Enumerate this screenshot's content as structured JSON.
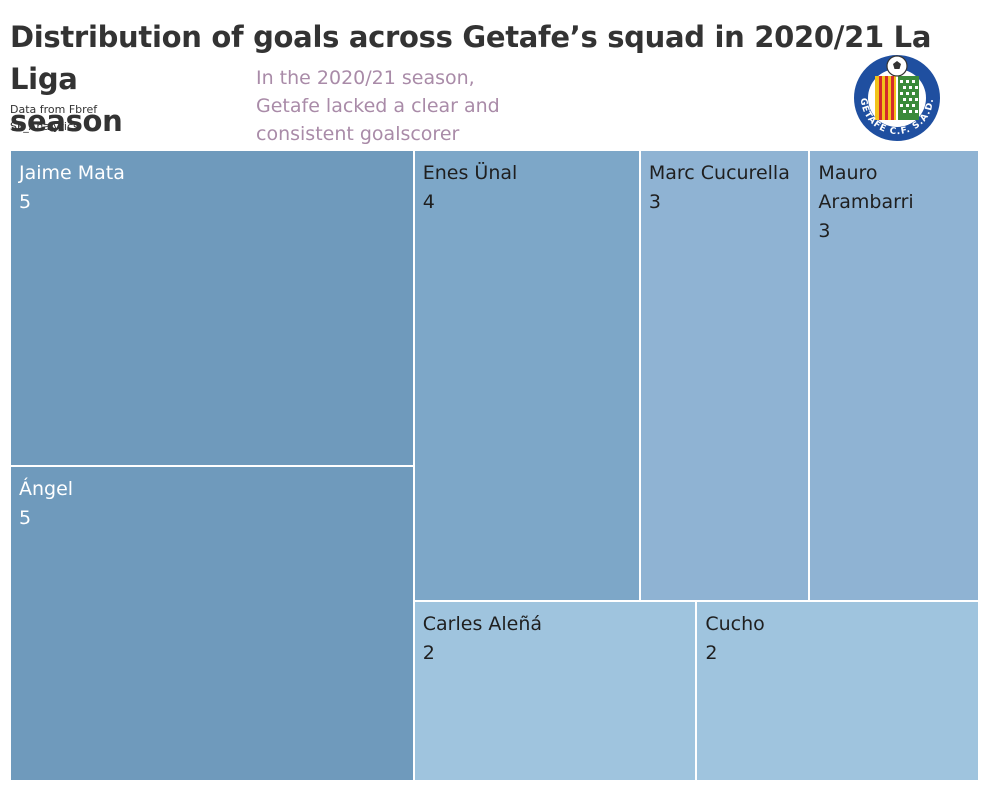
{
  "title": {
    "line1": "Distribution of goals across Getafe’s squad in 2020/21 La Liga",
    "line2": "season"
  },
  "sources": {
    "line1": "Data from Fbref",
    "line2": "SF_Analytics"
  },
  "annotation": {
    "line1": "In the 2020/21 season,",
    "line2": "Getafe lacked a clear and",
    "line3": "consistent goalscorer"
  },
  "logo": {
    "icon": "getafe-crest-icon",
    "text": "GETAFE C.F. S.A.D."
  },
  "colors": {
    "title": "#333333",
    "annotation": "#a98ba8",
    "value_5": "#6f9abc",
    "value_4": "#7da7c8",
    "value_3": "#8fb3d3",
    "value_2": "#9fc4de",
    "logo_blue": "#1f4fa0",
    "logo_red": "#d42b2b",
    "logo_yellow": "#f2c21b",
    "logo_green": "#3a8a3a"
  },
  "chart_data": {
    "type": "treemap",
    "size_measure": "goals",
    "series": [
      {
        "name": "Jaime Mata",
        "label_lines": [
          "Jaime Mata"
        ],
        "value": 5
      },
      {
        "name": "Ángel",
        "label_lines": [
          "Ángel"
        ],
        "value": 5
      },
      {
        "name": "Enes Ünal",
        "label_lines": [
          "Enes Ünal"
        ],
        "value": 4
      },
      {
        "name": "Marc Cucurella",
        "label_lines": [
          "Marc Cucurella"
        ],
        "value": 3
      },
      {
        "name": "Mauro Arambarri",
        "label_lines": [
          "Mauro",
          "Arambarri"
        ],
        "value": 3
      },
      {
        "name": "Carles Aleñá",
        "label_lines": [
          "Carles Aleñá"
        ],
        "value": 2
      },
      {
        "name": "Cucho",
        "label_lines": [
          "Cucho"
        ],
        "value": 2
      }
    ]
  }
}
